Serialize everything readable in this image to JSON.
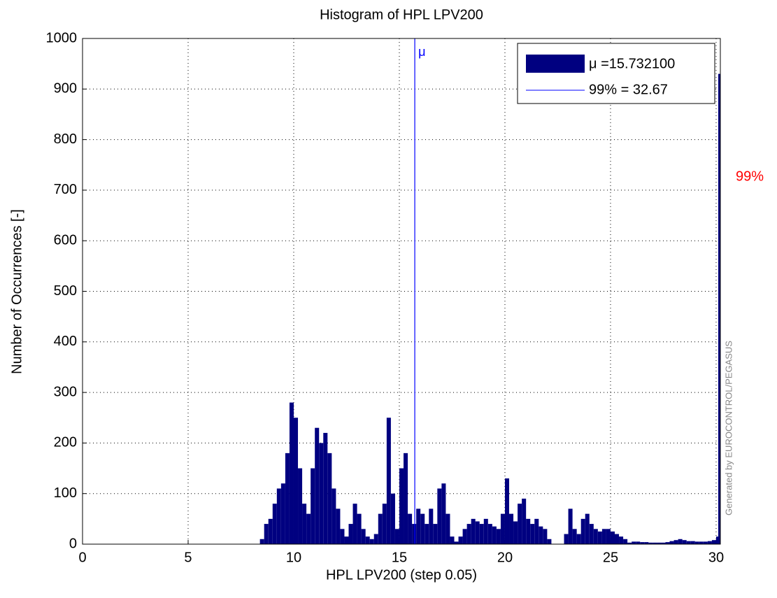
{
  "chart_data": {
    "type": "histogram",
    "title": "Histogram of HPL LPV200",
    "x_label": "HPL LPV200 (step 0.05)",
    "y_label": "Number of Occurrences [-]",
    "bins": [
      8.4,
      8.6,
      8.8,
      9.0,
      9.2,
      9.4,
      9.6,
      9.8,
      10.0,
      10.2,
      10.4,
      10.6,
      10.8,
      11.0,
      11.2,
      11.4,
      11.6,
      11.8,
      12.0,
      12.2,
      12.4,
      12.6,
      12.8,
      13.0,
      13.2,
      13.4,
      13.6,
      13.8,
      14.0,
      14.2,
      14.4,
      14.6,
      14.8,
      15.0,
      15.2,
      15.4,
      15.6,
      15.8,
      16.0,
      16.2,
      16.4,
      16.6,
      16.8,
      17.0,
      17.2,
      17.4,
      17.6,
      17.8,
      18.0,
      18.2,
      18.4,
      18.6,
      18.8,
      19.0,
      19.2,
      19.4,
      19.6,
      19.8,
      20.0,
      20.2,
      20.4,
      20.6,
      20.8,
      21.0,
      21.2,
      21.4,
      21.6,
      21.8,
      22.0,
      22.2,
      22.4,
      22.6,
      22.8,
      23.0,
      23.2,
      23.4,
      23.6,
      23.8,
      24.0,
      24.2,
      24.4,
      24.6,
      24.8,
      25.0,
      25.2,
      25.4,
      25.6,
      25.8,
      26.0,
      26.2,
      26.4,
      26.6,
      26.8,
      27.0,
      27.2,
      27.4,
      27.6,
      27.8,
      28.0,
      28.2,
      28.4,
      28.6,
      28.8,
      29.0,
      29.2,
      29.4,
      29.6,
      29.8,
      30.0,
      30.1,
      30.2
    ],
    "series": [
      {
        "name": "μ =15.732100",
        "color": "#000080",
        "values": [
          10,
          40,
          50,
          80,
          110,
          120,
          180,
          280,
          250,
          150,
          80,
          60,
          150,
          230,
          200,
          220,
          180,
          110,
          70,
          30,
          15,
          40,
          80,
          60,
          30,
          15,
          10,
          20,
          60,
          80,
          250,
          100,
          30,
          150,
          180,
          60,
          40,
          70,
          60,
          40,
          70,
          40,
          110,
          120,
          60,
          15,
          5,
          15,
          30,
          40,
          50,
          45,
          40,
          50,
          40,
          35,
          30,
          60,
          130,
          60,
          45,
          80,
          90,
          50,
          40,
          50,
          35,
          30,
          10,
          0,
          0,
          0,
          20,
          70,
          30,
          20,
          50,
          60,
          40,
          30,
          25,
          30,
          30,
          25,
          20,
          15,
          10,
          3,
          5,
          5,
          4,
          4,
          3,
          3,
          3,
          3,
          4,
          6,
          8,
          10,
          8,
          6,
          6,
          5,
          5,
          5,
          6,
          8,
          15,
          930
        ]
      }
    ],
    "mean_line": {
      "value": 15.7321,
      "label": "μ",
      "color": "#0000ff"
    },
    "percentile_line": {
      "value": 32.67,
      "name": "99% = 32.67",
      "label": "99%",
      "color": "#ff0000",
      "line_color": "#0000ff"
    },
    "xlim": [
      0,
      30.2
    ],
    "xticks": [
      0,
      5,
      10,
      15,
      20,
      25,
      30
    ],
    "ylim": [
      0,
      1000
    ],
    "yticks": [
      0,
      100,
      200,
      300,
      400,
      500,
      600,
      700,
      800,
      900,
      1000
    ],
    "grid": true,
    "legend": "upper right",
    "watermark": "Generated by EUROCONTROL/PEGASUS"
  }
}
